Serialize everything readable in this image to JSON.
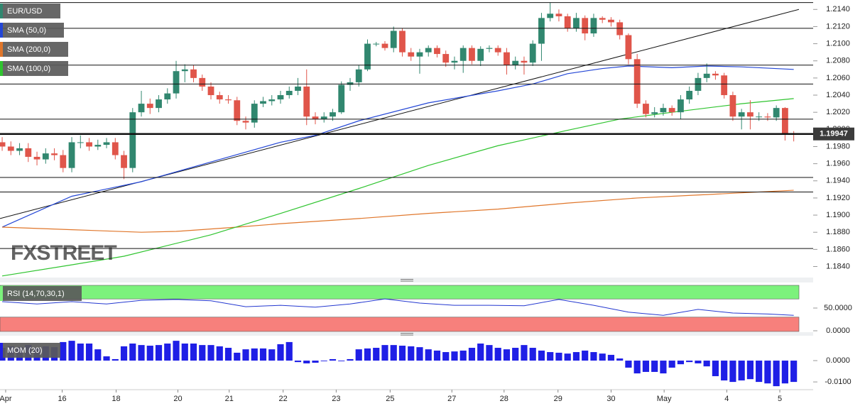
{
  "chart_data": [
    {
      "type": "candlestick",
      "title": "EUR/USD",
      "up_color": "#31876f",
      "down_color": "#e0554a",
      "xlim": [
        -0.25,
        91.6
      ],
      "ylim": [
        1.1828,
        1.2151
      ],
      "yticks": [
        {
          "value": 1.214,
          "label": "1.2140"
        },
        {
          "value": 1.212,
          "label": "1.2120"
        },
        {
          "value": 1.21,
          "label": "1.2100"
        },
        {
          "value": 1.208,
          "label": "1.2080"
        },
        {
          "value": 1.206,
          "label": "1.2060"
        },
        {
          "value": 1.204,
          "label": "1.2040"
        },
        {
          "value": 1.202,
          "label": "1.2020"
        },
        {
          "value": 1.2,
          "label": "1.2000"
        },
        {
          "value": 1.198,
          "label": "1.1980"
        },
        {
          "value": 1.196,
          "label": "1.1960"
        },
        {
          "value": 1.194,
          "label": "1.1940"
        },
        {
          "value": 1.192,
          "label": "1.1920"
        },
        {
          "value": 1.19,
          "label": "1.1900"
        },
        {
          "value": 1.188,
          "label": "1.1880"
        },
        {
          "value": 1.186,
          "label": "1.1860"
        },
        {
          "value": 1.184,
          "label": "1.1840"
        }
      ],
      "open": [
        1.1985,
        1.198,
        1.1975,
        1.1978,
        1.1968,
        1.1965,
        1.1972,
        1.197,
        1.1955,
        1.1985,
        1.1985,
        1.198,
        1.1982,
        1.1985,
        1.197,
        1.1955,
        1.202,
        1.203,
        1.2025,
        1.2035,
        1.2042,
        1.2068,
        1.207,
        1.206,
        1.205,
        1.204,
        1.2035,
        1.2034,
        1.201,
        1.2008,
        1.203,
        1.2033,
        1.2035,
        1.204,
        1.2045,
        1.205,
        1.2015,
        1.2012,
        1.2015,
        1.202,
        1.2052,
        1.2055,
        1.207,
        1.21,
        1.21,
        1.2095,
        1.2115,
        1.209,
        1.2085,
        1.209,
        1.2095,
        1.2088,
        1.2078,
        1.208,
        1.2095,
        1.208,
        1.2094,
        1.2095,
        1.209,
        1.2075,
        1.208,
        1.2078,
        1.21,
        1.213,
        1.2135,
        1.2132,
        1.2118,
        1.213,
        1.2112,
        1.213,
        1.2128,
        1.2125,
        1.211,
        1.2082,
        1.203,
        1.2018,
        1.202,
        1.2025,
        1.202,
        1.2035,
        1.2045,
        1.206,
        1.2065,
        1.2063,
        1.204,
        1.2015,
        1.202,
        1.2015,
        1.2015,
        1.2014,
        1.2025,
        1.1995
      ],
      "high": [
        1.1991,
        1.1986,
        1.1984,
        1.1984,
        1.1974,
        1.1978,
        1.1978,
        1.1976,
        1.1991,
        1.1993,
        1.199,
        1.1988,
        1.199,
        1.199,
        1.1975,
        1.2025,
        1.2045,
        1.2036,
        1.204,
        1.2048,
        1.208,
        1.2076,
        1.2075,
        1.2064,
        1.2055,
        1.2044,
        1.204,
        1.2038,
        1.2015,
        1.2034,
        1.2038,
        1.204,
        1.2045,
        1.205,
        1.206,
        1.207,
        1.202,
        1.202,
        1.2024,
        1.2056,
        1.206,
        1.2075,
        1.2105,
        1.2102,
        1.2103,
        1.212,
        1.2118,
        1.2095,
        1.2094,
        1.2098,
        1.2098,
        1.2092,
        1.2085,
        1.2098,
        1.2098,
        1.2097,
        1.2098,
        1.2098,
        1.2095,
        1.2085,
        1.2085,
        1.2104,
        1.2136,
        1.2148,
        1.214,
        1.2135,
        1.2136,
        1.2133,
        1.2135,
        1.2132,
        1.2131,
        1.2128,
        1.2112,
        1.2088,
        1.2034,
        1.2026,
        1.203,
        1.2028,
        1.204,
        1.205,
        1.2066,
        1.2077,
        1.2068,
        1.2066,
        1.2044,
        1.2024,
        1.2034,
        1.202,
        1.2019,
        1.2028,
        1.2026,
        1.1998
      ],
      "low": [
        1.1975,
        1.197,
        1.197,
        1.1962,
        1.1958,
        1.196,
        1.1964,
        1.195,
        1.195,
        1.1978,
        1.1975,
        1.1976,
        1.1978,
        1.1965,
        1.1942,
        1.195,
        1.2015,
        1.2018,
        1.202,
        1.203,
        1.2036,
        1.2055,
        1.2055,
        1.2045,
        1.2035,
        1.203,
        1.203,
        1.2005,
        1.2,
        1.2002,
        1.2026,
        1.2028,
        1.203,
        1.2036,
        1.204,
        1.2005,
        1.2006,
        1.2008,
        1.201,
        1.2018,
        1.2045,
        1.205,
        1.2068,
        1.2097,
        1.2092,
        1.209,
        1.2085,
        1.208,
        1.2065,
        1.2085,
        1.2084,
        1.2073,
        1.207,
        1.2066,
        1.2076,
        1.2074,
        1.209,
        1.2086,
        1.2064,
        1.207,
        1.2064,
        1.2074,
        1.208,
        1.2126,
        1.2126,
        1.2114,
        1.2114,
        1.2104,
        1.2108,
        1.2124,
        1.212,
        1.2105,
        1.2076,
        1.2025,
        1.2014,
        1.2014,
        1.2016,
        1.2016,
        1.2012,
        1.203,
        1.204,
        1.2055,
        1.2058,
        1.2036,
        1.201,
        1.2,
        1.2,
        1.201,
        1.201,
        1.201,
        1.1987,
        1.1986
      ],
      "close": [
        1.198,
        1.1975,
        1.1978,
        1.1968,
        1.1965,
        1.1972,
        1.197,
        1.1955,
        1.1985,
        1.1985,
        1.198,
        1.1982,
        1.1985,
        1.197,
        1.1955,
        1.202,
        1.203,
        1.2025,
        1.2035,
        1.2042,
        1.2068,
        1.207,
        1.206,
        1.205,
        1.204,
        1.2035,
        1.2034,
        1.201,
        1.2008,
        1.203,
        1.2033,
        1.2035,
        1.204,
        1.2045,
        1.205,
        1.2015,
        1.2012,
        1.2015,
        1.202,
        1.2052,
        1.2055,
        1.207,
        1.21,
        1.21,
        1.2095,
        1.2115,
        1.209,
        1.2085,
        1.209,
        1.2095,
        1.2088,
        1.2078,
        1.208,
        1.2095,
        1.208,
        1.2094,
        1.2095,
        1.209,
        1.2075,
        1.208,
        1.2078,
        1.21,
        1.213,
        1.2135,
        1.2132,
        1.2118,
        1.213,
        1.2112,
        1.213,
        1.2128,
        1.2125,
        1.211,
        1.2082,
        1.203,
        1.2018,
        1.202,
        1.2025,
        1.202,
        1.2035,
        1.2045,
        1.206,
        1.2065,
        1.2063,
        1.204,
        1.2015,
        1.202,
        1.2015,
        1.2015,
        1.2014,
        1.2025,
        1.1995,
        1.19947
      ],
      "series": [
        {
          "name": "SMA (50,0)",
          "color": "#2447d6",
          "x": [
            0,
            8,
            16,
            24,
            32,
            36,
            41,
            49,
            57,
            61,
            65,
            69,
            72,
            77,
            81,
            85,
            91
          ],
          "values": [
            1.1886,
            1.1922,
            1.1939,
            1.1962,
            1.1985,
            1.1993,
            1.201,
            1.2031,
            1.2045,
            1.2053,
            1.2065,
            1.2071,
            1.2074,
            1.2072,
            1.2074,
            1.2073,
            1.207
          ]
        },
        {
          "name": "SMA (200,0)",
          "color": "#e0762a",
          "x": [
            0,
            8,
            16,
            20,
            27,
            32,
            41,
            49,
            57,
            65,
            73,
            81,
            91
          ],
          "values": [
            1.1886,
            1.1883,
            1.188,
            1.1881,
            1.1886,
            1.189,
            1.1896,
            1.1902,
            1.1907,
            1.1914,
            1.192,
            1.1924,
            1.1929
          ]
        },
        {
          "name": "SMA (100,0)",
          "color": "#2fc42f",
          "x": [
            0,
            8,
            14,
            24,
            32,
            41,
            49,
            57,
            65,
            71,
            77,
            85,
            91
          ],
          "values": [
            1.1829,
            1.1842,
            1.1852,
            1.1877,
            1.1902,
            1.1931,
            1.1958,
            1.1981,
            1.1999,
            1.2012,
            1.202,
            1.203,
            1.2036
          ]
        }
      ],
      "trendline": {
        "x": [
          -0.25,
          91.6
        ],
        "values": [
          1.1896,
          1.214
        ]
      },
      "levels": [
        1.2148,
        1.2118,
        1.2075,
        1.2053,
        1.2012,
        1.1944,
        1.1927,
        1.1861
      ],
      "last_price": 1.19947,
      "watermark": "FXSTREET"
    },
    {
      "type": "line",
      "title": "RSI (14,70,30,1)",
      "color": "#2438d0",
      "xlim": [
        -0.25,
        91.6
      ],
      "ylim": [
        -3.1,
        103.1
      ],
      "yticks": [
        {
          "value": 50,
          "label": "50.0000"
        },
        {
          "value": 0,
          "label": "0.0000"
        }
      ],
      "bands": [
        30,
        70
      ],
      "upper_band_color": "#7cf27c",
      "lower_band_color": "#f7807c",
      "x": [
        0,
        4,
        8,
        12,
        16,
        20,
        24,
        28,
        32,
        36,
        40,
        44,
        48,
        52,
        56,
        60,
        64,
        68,
        72,
        76,
        80,
        84,
        88,
        91
      ],
      "values": [
        64,
        59,
        64,
        59,
        67,
        69,
        66,
        53,
        56,
        52,
        59,
        70,
        61,
        56,
        56,
        55,
        69,
        56,
        41,
        34,
        47,
        39,
        37,
        34
      ]
    },
    {
      "type": "bar",
      "title": "MOM (20)",
      "color": "#1f1fe6",
      "xlim": [
        -0.25,
        91.6
      ],
      "ylim": [
        -0.0133,
        0.012
      ],
      "yticks": [
        {
          "value": 0,
          "label": "0.0000"
        },
        {
          "value": -0.01,
          "label": "-0.0100"
        }
      ],
      "xticks": [
        {
          "value": 0.4,
          "label": "Apr"
        },
        {
          "value": 6.9,
          "label": "16"
        },
        {
          "value": 13.1,
          "label": "18"
        },
        {
          "value": 20.2,
          "label": "20"
        },
        {
          "value": 26.1,
          "label": "21"
        },
        {
          "value": 32.3,
          "label": "22"
        },
        {
          "value": 38.4,
          "label": "23"
        },
        {
          "value": 44.6,
          "label": "25"
        },
        {
          "value": 51.7,
          "label": "27"
        },
        {
          "value": 57.7,
          "label": "28"
        },
        {
          "value": 63.9,
          "label": "29"
        },
        {
          "value": 70,
          "label": "30"
        },
        {
          "value": 76.1,
          "label": "May"
        },
        {
          "value": 83.3,
          "label": "4"
        },
        {
          "value": 89.4,
          "label": "5"
        }
      ],
      "values": [
        0.006,
        0.0067,
        0.0063,
        0.0073,
        0.006,
        0.0067,
        0.0063,
        0.0087,
        0.0093,
        0.008,
        0.008,
        0.0053,
        0.002,
        0.0007,
        0.0067,
        0.008,
        0.0073,
        0.007,
        0.0073,
        0.008,
        0.0093,
        0.008,
        0.008,
        0.0073,
        0.0073,
        0.0067,
        0.006,
        0.0037,
        0.0053,
        0.0057,
        0.0057,
        0.0053,
        0.0077,
        0.0087,
        -0.0007,
        -0.0013,
        -0.001,
        -0.0003,
        0.0007,
        -0.0003,
        0.0007,
        0.0053,
        0.0057,
        0.006,
        0.0073,
        0.0073,
        0.007,
        0.0067,
        0.0063,
        0.0053,
        0.0047,
        0.004,
        0.0043,
        0.0047,
        0.006,
        0.008,
        0.0073,
        0.006,
        0.0053,
        0.006,
        0.0073,
        0.006,
        0.0047,
        0.004,
        0.0037,
        0.0033,
        0.004,
        0.0047,
        0.004,
        0.0033,
        0.0027,
        0.001,
        -0.0033,
        -0.006,
        -0.0053,
        -0.0053,
        -0.006,
        -0.0033,
        -0.0017,
        -0.0007,
        -0.0013,
        -0.0027,
        -0.0073,
        -0.0093,
        -0.01,
        -0.0093,
        -0.0087,
        -0.01,
        -0.0107,
        -0.012,
        -0.0107,
        -0.01
      ]
    }
  ]
}
